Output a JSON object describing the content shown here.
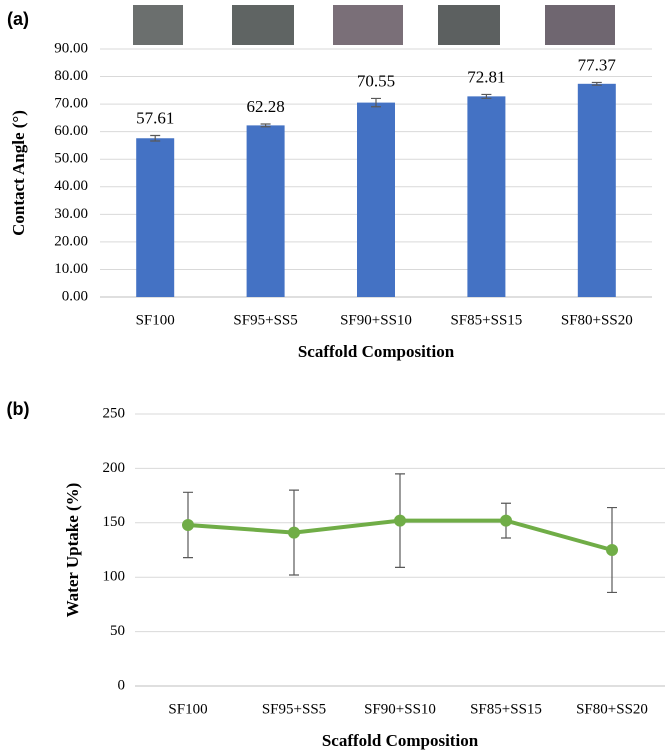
{
  "chart_data": [
    {
      "type": "bar",
      "panel_label": "(a)",
      "ylabel": "Contact Angle (°)",
      "xlabel": "Scaffold Composition",
      "categories": [
        "SF100",
        "SF95+SS5",
        "SF90+SS10",
        "SF85+SS15",
        "SF80+SS20"
      ],
      "values": [
        57.61,
        62.28,
        70.55,
        72.81,
        77.37
      ],
      "errors": [
        1.0,
        0.5,
        1.5,
        0.7,
        0.5
      ],
      "color": "#4472c4",
      "ylim": [
        0,
        90
      ],
      "yticks": [
        {
          "value": 0,
          "label": "0.00"
        },
        {
          "value": 10,
          "label": "10.00"
        },
        {
          "value": 20,
          "label": "20.00"
        },
        {
          "value": 30,
          "label": "30.00"
        },
        {
          "value": 40,
          "label": "40.00"
        },
        {
          "value": 50,
          "label": "50.00"
        },
        {
          "value": 60,
          "label": "60.00"
        },
        {
          "value": 70,
          "label": "70.00"
        },
        {
          "value": 80,
          "label": "80.00"
        },
        {
          "value": 90,
          "label": "90.00"
        }
      ],
      "grid": true
    },
    {
      "type": "line",
      "panel_label": "(b)",
      "ylabel": "Water Uptake (%)",
      "xlabel": "Scaffold Composition",
      "categories": [
        "SF100",
        "SF95+SS5",
        "SF90+SS10",
        "SF85+SS15",
        "SF80+SS20"
      ],
      "values": [
        148,
        141,
        152,
        152,
        125
      ],
      "errors": [
        30,
        39,
        43,
        16,
        39
      ],
      "color": "#70ad47",
      "ylim": [
        0,
        250
      ],
      "yticks": [
        0,
        50,
        100,
        150,
        200,
        250
      ],
      "grid": true
    }
  ]
}
